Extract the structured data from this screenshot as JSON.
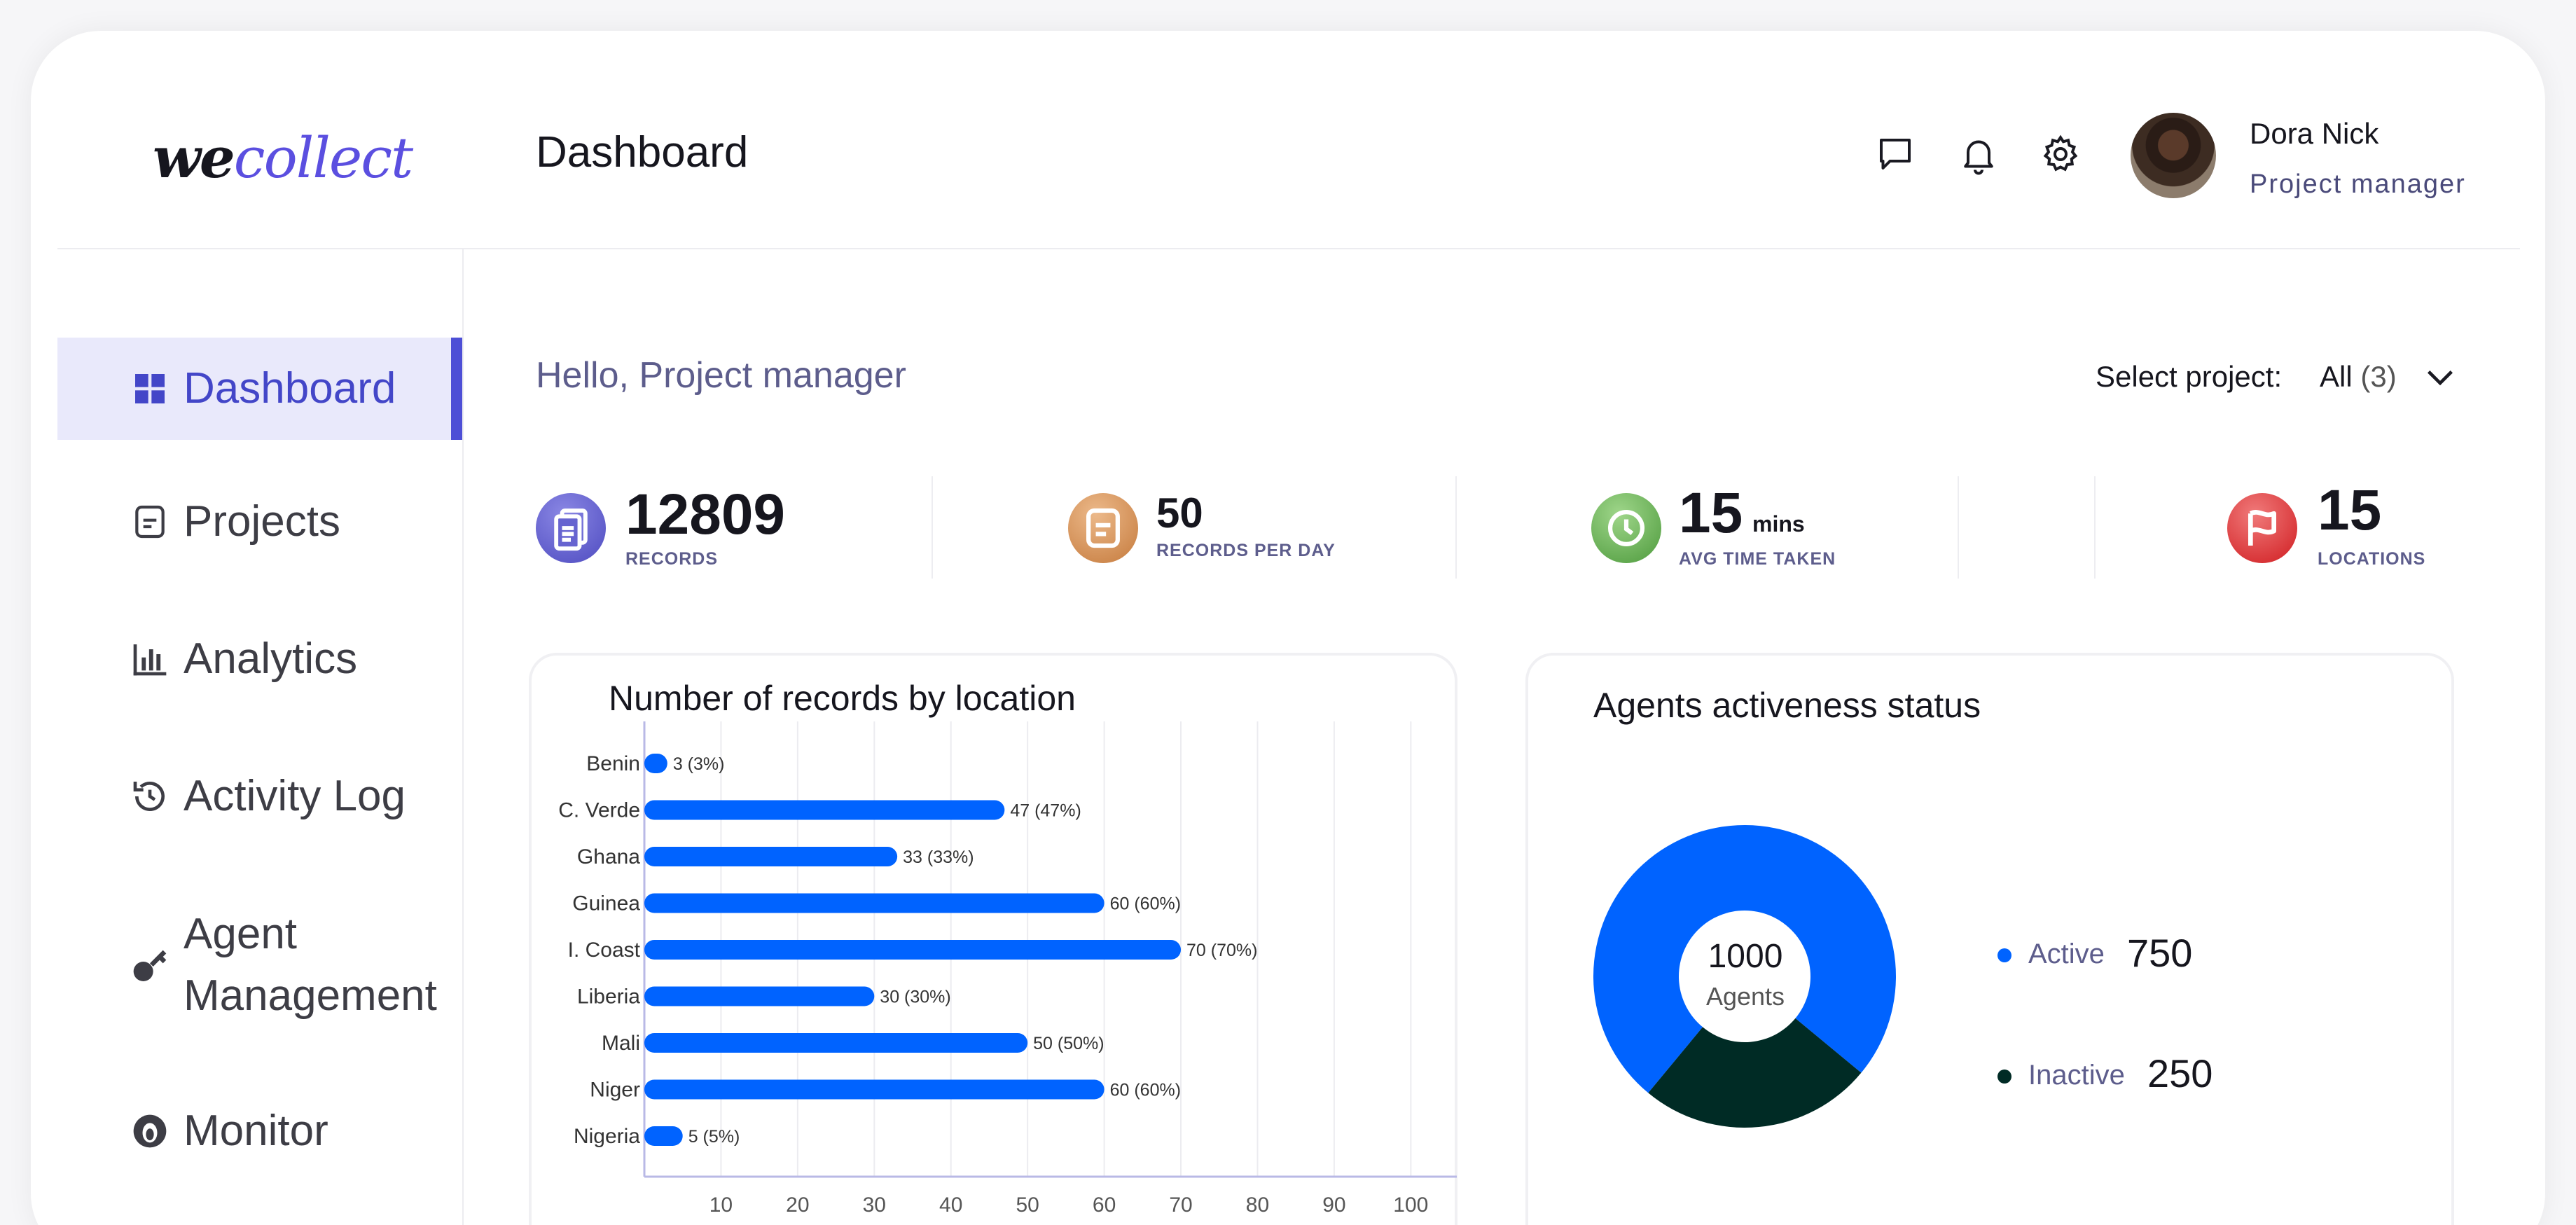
{
  "app": {
    "logo_we": "we",
    "logo_collect": "collect"
  },
  "header": {
    "title": "Dashboard",
    "user_name": "Dora Nick",
    "user_role": "Project manager"
  },
  "sidebar": {
    "items": [
      {
        "label": "Dashboard",
        "icon": "grid-icon",
        "active": true
      },
      {
        "label": "Projects",
        "icon": "document-icon"
      },
      {
        "label": "Analytics",
        "icon": "bar-chart-icon"
      },
      {
        "label": "Activity Log",
        "icon": "history-icon"
      },
      {
        "label": "Agent",
        "label2": "Management",
        "icon": "key-icon"
      },
      {
        "label": "Monitor",
        "icon": "eye-icon"
      }
    ]
  },
  "main": {
    "greeting": "Hello, Project manager",
    "select_label": "Select project:",
    "select_value": "All",
    "select_count": "(3)"
  },
  "stats": [
    {
      "value": "12809",
      "unit": "",
      "label": "RECORDS",
      "color": "#5b57c9"
    },
    {
      "value": "50",
      "unit": "",
      "label": "RECORDS PER DAY",
      "color": "#d08a4a"
    },
    {
      "value": "15",
      "unit": "mins",
      "label": "AVG TIME TAKEN",
      "color": "#5fa04e"
    },
    {
      "value": "15",
      "unit": "",
      "label": "LOCATIONS",
      "color": "#d8282c"
    }
  ],
  "records_panel": {
    "title": "Number of records by location"
  },
  "agents_panel": {
    "title": "Agents activeness status",
    "total": "1000",
    "total_label": "Agents",
    "legend": [
      {
        "label": "Active",
        "value": "750",
        "color": "#0063ff"
      },
      {
        "label": "Inactive",
        "value": "250",
        "color": "#002b25"
      }
    ]
  },
  "chart_data": [
    {
      "type": "bar",
      "orientation": "horizontal",
      "title": "Number of records by location",
      "categories": [
        "Benin",
        "C. Verde",
        "Ghana",
        "Guinea",
        "I. Coast",
        "Liberia",
        "Mali",
        "Niger",
        "Nigeria"
      ],
      "values": [
        3,
        47,
        33,
        60,
        70,
        30,
        50,
        60,
        5
      ],
      "data_labels": [
        "3 (3%)",
        "47 (47%)",
        "33 (33%)",
        "60 (60%)",
        "70 (70%)",
        "30 (30%)",
        "50 (50%)",
        "60 (60%)",
        "5 (5%)"
      ],
      "xticks": [
        10,
        20,
        30,
        40,
        50,
        60,
        70,
        80,
        90,
        100
      ],
      "xlim": [
        0,
        106
      ],
      "grid": true,
      "color": "#0063ff"
    },
    {
      "type": "pie",
      "donut": true,
      "categories": [
        "Active",
        "Inactive"
      ],
      "values": [
        750,
        250
      ],
      "colors": [
        "#0063ff",
        "#002b25"
      ]
    }
  ]
}
